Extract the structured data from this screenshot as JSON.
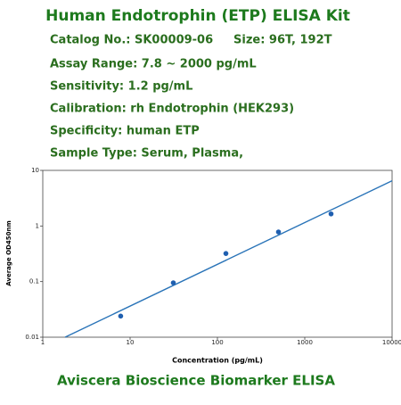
{
  "header": {
    "title": "Human Endotrophin (ETP) ELISA Kit",
    "lines": [
      "Catalog No.: SK00009-06",
      "Size: 96T, 192T",
      "Assay Range: 7.8 ~ 2000 pg/mL",
      "Sensitivity: 1.2 pg/mL",
      "Calibration: rh Endotrophin (HEK293)",
      "Specificity: human ETP",
      "Sample Type: Serum, Plasma,"
    ]
  },
  "chart_data": {
    "type": "scatter",
    "x_label": "Concentration (pg/mL)",
    "y_label": "Average OD450nm",
    "x": [
      7.8,
      31.25,
      125,
      500,
      2000
    ],
    "values": [
      0.024,
      0.095,
      0.32,
      0.78,
      1.65
    ],
    "color": "#1f5fb0",
    "fit_line": {
      "x": [
        1.8,
        10000
      ],
      "values": [
        0.01,
        6.5
      ],
      "color": "#2a74b8"
    },
    "log_x": true,
    "log_y": true,
    "xlim": [
      1,
      10000
    ],
    "xticks": [
      1,
      10,
      100,
      1000,
      10000
    ],
    "ylim": [
      0.01,
      10
    ],
    "yticks": [
      0.01,
      0.1,
      1,
      10
    ]
  },
  "footer": "Aviscera Bioscience Biomarker ELISA"
}
